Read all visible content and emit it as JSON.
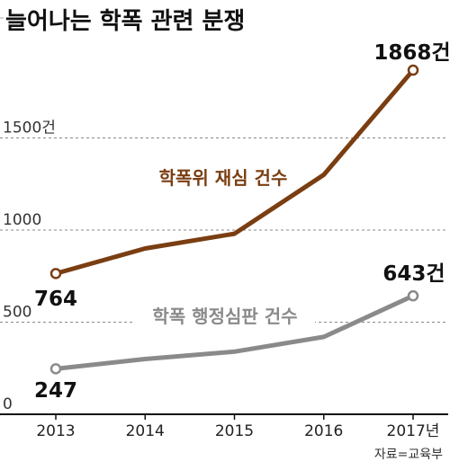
{
  "header": {
    "title": "늘어나는 학폭 관련 분쟁"
  },
  "source": "자료=교육부",
  "colors": {
    "series1": "#7a3e12",
    "series2": "#8a8a8a",
    "grid": "#888888"
  },
  "chart_data": {
    "type": "line",
    "title": "늘어나는 학폭 관련 분쟁",
    "x": [
      "2013",
      "2014",
      "2015",
      "2016",
      "2017"
    ],
    "x_tick_labels": [
      "2013",
      "2014",
      "2015",
      "2016",
      "2017년"
    ],
    "y_tick_labels": [
      "0",
      "500",
      "1000",
      "1500건"
    ],
    "y_ticks": [
      0,
      500,
      1000,
      1500
    ],
    "ylim": [
      0,
      2000
    ],
    "grid": true,
    "series": [
      {
        "name": "학폭위 재심 건수",
        "values": [
          764,
          900,
          980,
          1300,
          1868
        ],
        "point_labels": [
          "764",
          "",
          "",
          "",
          "1868건"
        ]
      },
      {
        "name": "학폭 행정심판 건수",
        "values": [
          247,
          300,
          340,
          420,
          643
        ],
        "point_labels": [
          "247",
          "",
          "",
          "",
          "643건"
        ]
      }
    ]
  }
}
